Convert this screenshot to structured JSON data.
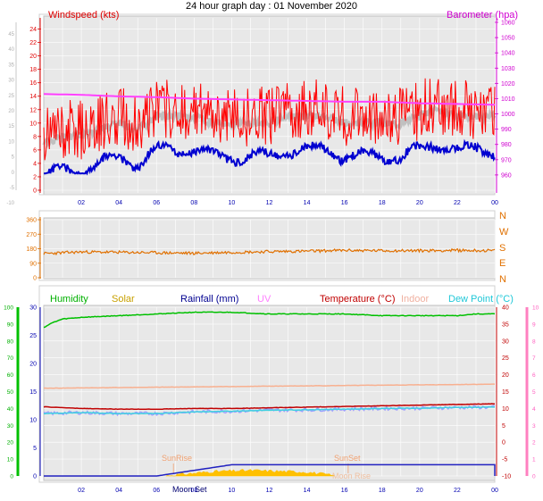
{
  "title": "24 hour graph day : 01 November 2020",
  "x_ticks": [
    "02",
    "04",
    "06",
    "08",
    "10",
    "12",
    "14",
    "16",
    "18",
    "20",
    "22",
    "00"
  ],
  "colors": {
    "wind_gust": "#ff0000",
    "wind_avg": "#0000d0",
    "wind_gray": "#c0c0c0",
    "baro": "#ff40ff",
    "direction": "#e07000",
    "humidity": "#00c000",
    "solar": "#ffc000",
    "rain": "#2020c0",
    "uv": "#ff80ff",
    "temperature": "#c00000",
    "indoor": "#f8b090",
    "dewpoint": "#40d0e0",
    "apparent": "#a0a0ff",
    "sun_marker": "#f0a070"
  },
  "panel1": {
    "label_left": "Windspeed (kts)",
    "label_right": "Barometer (hpa)",
    "left_ticks": [
      "24",
      "22",
      "20",
      "18",
      "16",
      "14",
      "12",
      "10",
      "8",
      "6",
      "4",
      "2",
      "0"
    ],
    "far_left_ticks": [
      "45",
      "40",
      "35",
      "30",
      "25",
      "20",
      "15",
      "10",
      "5",
      "0",
      "-5",
      "-10"
    ],
    "right_ticks": [
      "1060",
      "1050",
      "1040",
      "1030",
      "1020",
      "1010",
      "1000",
      "990",
      "980",
      "970",
      "960"
    ]
  },
  "panel2": {
    "left_ticks": [
      "360",
      "270",
      "180",
      "90",
      "0"
    ],
    "compass": [
      "N",
      "W",
      "S",
      "E",
      "N"
    ]
  },
  "panel3": {
    "legend": {
      "humidity": "Humidity",
      "solar": "Solar",
      "rainfall": "Rainfall (mm)",
      "uv": "UV",
      "temperature": "Temperature (°C)",
      "indoor": "Indoor",
      "dewpoint": "Dew Point (°C)"
    },
    "humidity_ticks": [
      "100",
      "90",
      "80",
      "70",
      "60",
      "50",
      "40",
      "30",
      "20",
      "10",
      "0"
    ],
    "rain_ticks": [
      "30",
      "25",
      "20",
      "15",
      "10",
      "5",
      "0"
    ],
    "temp_ticks": [
      "40",
      "35",
      "30",
      "25",
      "20",
      "15",
      "10",
      "5",
      "0",
      "-5",
      "-10"
    ],
    "uv_ticks": [
      "10",
      "9",
      "8",
      "7",
      "6",
      "5",
      "4",
      "3",
      "2",
      "1",
      "0"
    ],
    "annotations": {
      "sunrise": "SunRise",
      "sunset": "SunSet",
      "moonset": "Moon Set",
      "moonrise": "Moon Rise"
    }
  },
  "chart_data": [
    {
      "type": "line",
      "title": "24 hour graph day : 01 November 2020",
      "x_unit": "hour",
      "xlim": [
        0,
        24
      ],
      "ylabel": "Windspeed (kts)",
      "ylim": [
        0,
        25
      ],
      "y2label": "Barometer (hpa)",
      "y2lim": [
        950,
        1060
      ],
      "series": [
        {
          "name": "Windspeed (kts)",
          "x": [
            0,
            1,
            2,
            3,
            4,
            5,
            6,
            7,
            8,
            9,
            10,
            11,
            12,
            13,
            14,
            15,
            16,
            17,
            18,
            19,
            20,
            21,
            22,
            23,
            24
          ],
          "values": [
            8,
            9,
            9,
            10,
            11,
            10,
            12,
            12,
            12,
            11,
            11,
            11,
            11,
            12,
            12,
            12,
            11,
            11,
            11,
            11,
            12,
            13,
            12,
            12,
            12
          ]
        },
        {
          "name": "Barometer (hpa)",
          "x": [
            0,
            2,
            4,
            6,
            8,
            10,
            12,
            14,
            16,
            18,
            20,
            22,
            24
          ],
          "values": [
            1013,
            1012.5,
            1011.5,
            1011,
            1010,
            1009.5,
            1009,
            1008.5,
            1008,
            1008,
            1007,
            1006.5,
            1006
          ]
        }
      ]
    },
    {
      "type": "line",
      "x_unit": "hour",
      "xlim": [
        0,
        24
      ],
      "ylabel": "",
      "ylim": [
        0,
        360
      ],
      "series": [
        {
          "x": [
            0,
            2,
            4,
            6,
            8,
            10,
            12,
            14,
            16,
            18,
            20,
            22,
            24
          ],
          "values": [
            150,
            160,
            158,
            155,
            152,
            158,
            162,
            165,
            170,
            168,
            168,
            170,
            168
          ]
        }
      ]
    },
    {
      "type": "line",
      "x_unit": "hour",
      "xlim": [
        0,
        24
      ],
      "series": [
        {
          "name": "Humidity",
          "ylim": [
            0,
            100
          ],
          "x": [
            0,
            0.5,
            1,
            2,
            4,
            6,
            8,
            10,
            12,
            14,
            16,
            18,
            20,
            22,
            23,
            24
          ],
          "values": [
            88,
            91,
            93,
            94,
            95,
            96,
            97,
            97,
            96,
            96,
            96,
            95,
            95,
            95,
            96,
            96
          ]
        },
        {
          "name": "Temperature (°C)",
          "ylim": [
            -10,
            40
          ],
          "x": [
            0,
            2,
            4,
            6,
            8,
            10,
            12,
            14,
            16,
            18,
            20,
            22,
            24
          ],
          "values": [
            10.5,
            10,
            9.8,
            9.8,
            10,
            10,
            10.2,
            10.4,
            10.6,
            10.8,
            11,
            11.2,
            11.4
          ]
        },
        {
          "name": "Indoor",
          "ylim": [
            -10,
            40
          ],
          "x": [
            0,
            2,
            4,
            6,
            8,
            10,
            12,
            14,
            16,
            18,
            20,
            22,
            24
          ],
          "values": [
            16,
            16.1,
            16.2,
            16.3,
            16.4,
            16.5,
            16.6,
            16.7,
            16.8,
            16.9,
            17,
            17.1,
            17.2
          ]
        },
        {
          "name": "Dew Point (°C)",
          "ylim": [
            -10,
            40
          ],
          "x": [
            0,
            2,
            4,
            6,
            8,
            10,
            12,
            14,
            16,
            18,
            20,
            22,
            24
          ],
          "values": [
            8.5,
            8.8,
            8.5,
            8.5,
            9,
            9.2,
            9.5,
            9.6,
            9.8,
            10,
            10.1,
            10.3,
            10.4
          ]
        },
        {
          "name": "Rainfall (mm)",
          "ylim": [
            0,
            30
          ],
          "x": [
            0,
            4,
            6,
            7,
            8,
            9,
            10,
            24
          ],
          "values": [
            0,
            0,
            0,
            0.5,
            1,
            1.5,
            2,
            2
          ]
        },
        {
          "name": "Solar",
          "ylim": [
            0,
            30
          ],
          "x": [
            6.5,
            7,
            8,
            9,
            10,
            11,
            12,
            13,
            14,
            15,
            15.5
          ],
          "values": [
            0,
            0.2,
            0.5,
            0.8,
            0.9,
            1,
            0.9,
            0.8,
            0.7,
            0.3,
            0
          ]
        }
      ]
    }
  ]
}
